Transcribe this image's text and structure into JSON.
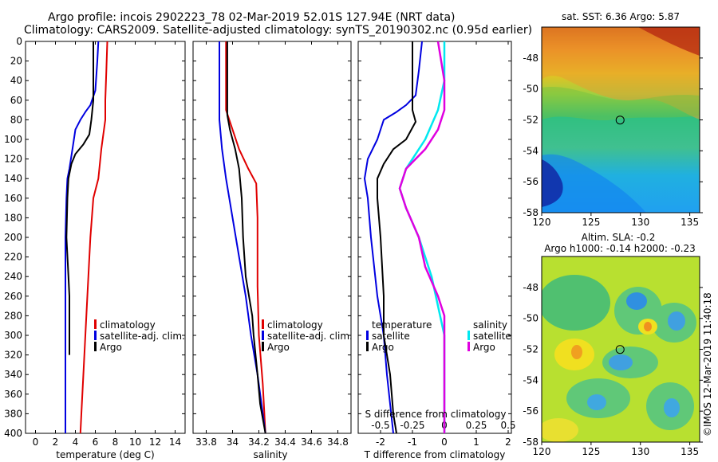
{
  "title": {
    "line1": "Argo profile: incois 2902223_78 02-Mar-2019 52.01S 127.94E (NRT data)",
    "line2": "Climatology: CARS2009. Satellite-adjusted climatology: synTS_20190302.nc (0.95d earlier)"
  },
  "depth_axis": {
    "ylim": [
      0,
      400
    ],
    "ticks": [
      0,
      20,
      40,
      60,
      80,
      100,
      120,
      140,
      160,
      180,
      200,
      220,
      240,
      260,
      280,
      300,
      320,
      340,
      360,
      380,
      400
    ]
  },
  "colors": {
    "climatology": "#e00000",
    "satellite": "#0000e0",
    "argo": "#000000",
    "cyan": "#00e8f0",
    "magenta": "#e000e0"
  },
  "chart_data": [
    {
      "type": "line",
      "panel": "temperature",
      "xlabel": "temperature (deg C)",
      "xlim": [
        -1,
        15
      ],
      "xticks": [
        0,
        2,
        4,
        6,
        8,
        10,
        12,
        14
      ],
      "legend": [
        "climatology",
        "satellite-adj. clim.",
        "Argo"
      ],
      "series": [
        {
          "name": "climatology",
          "color": "#e00000",
          "points": [
            [
              7.2,
              0
            ],
            [
              7.1,
              30
            ],
            [
              7.0,
              60
            ],
            [
              7.0,
              80
            ],
            [
              6.8,
              95
            ],
            [
              6.6,
              110
            ],
            [
              6.3,
              140
            ],
            [
              5.8,
              160
            ],
            [
              5.5,
              200
            ],
            [
              5.2,
              260
            ],
            [
              5.0,
              300
            ],
            [
              4.8,
              340
            ],
            [
              4.6,
              380
            ],
            [
              4.5,
              400
            ]
          ]
        },
        {
          "name": "satellite-adj. clim.",
          "color": "#0000e0",
          "points": [
            [
              6.3,
              0
            ],
            [
              6.2,
              20
            ],
            [
              6.0,
              50
            ],
            [
              5.5,
              65
            ],
            [
              5.0,
              72
            ],
            [
              4.5,
              80
            ],
            [
              4.0,
              90
            ],
            [
              3.7,
              110
            ],
            [
              3.4,
              130
            ],
            [
              3.2,
              140
            ],
            [
              3.1,
              160
            ],
            [
              3.0,
              200
            ],
            [
              3.0,
              260
            ],
            [
              3.0,
              300
            ],
            [
              3.0,
              340
            ],
            [
              3.0,
              400
            ]
          ]
        },
        {
          "name": "Argo",
          "color": "#000000",
          "points": [
            [
              5.8,
              0
            ],
            [
              5.8,
              20
            ],
            [
              5.8,
              40
            ],
            [
              5.8,
              60
            ],
            [
              5.6,
              80
            ],
            [
              5.4,
              95
            ],
            [
              4.8,
              105
            ],
            [
              4.0,
              115
            ],
            [
              3.6,
              125
            ],
            [
              3.3,
              140
            ],
            [
              3.2,
              160
            ],
            [
              3.1,
              200
            ],
            [
              3.3,
              240
            ],
            [
              3.4,
              260
            ],
            [
              3.4,
              300
            ],
            [
              3.4,
              320
            ]
          ]
        }
      ]
    },
    {
      "type": "line",
      "panel": "salinity",
      "xlabel": "salinity",
      "xlim": [
        33.7,
        34.9
      ],
      "xticks": [
        33.8,
        34,
        34.2,
        34.4,
        34.6,
        34.8
      ],
      "tick_labels": [
        "33.8",
        "34",
        "34.2",
        "34.4",
        "34.6",
        "34.8"
      ],
      "legend": [
        "climatology",
        "satellite-adj. clim.",
        "Argo"
      ],
      "series": [
        {
          "name": "climatology",
          "color": "#e00000",
          "points": [
            [
              33.95,
              0
            ],
            [
              33.95,
              50
            ],
            [
              33.95,
              70
            ],
            [
              34.0,
              90
            ],
            [
              34.05,
              110
            ],
            [
              34.12,
              130
            ],
            [
              34.18,
              145
            ],
            [
              34.19,
              180
            ],
            [
              34.19,
              250
            ],
            [
              34.2,
              300
            ],
            [
              34.23,
              350
            ],
            [
              34.25,
              400
            ]
          ]
        },
        {
          "name": "satellite-adj. clim.",
          "color": "#0000e0",
          "points": [
            [
              33.9,
              0
            ],
            [
              33.9,
              40
            ],
            [
              33.9,
              80
            ],
            [
              33.92,
              110
            ],
            [
              33.95,
              140
            ],
            [
              34.0,
              180
            ],
            [
              34.05,
              220
            ],
            [
              34.1,
              260
            ],
            [
              34.14,
              300
            ],
            [
              34.19,
              340
            ],
            [
              34.22,
              370
            ],
            [
              34.25,
              400
            ]
          ]
        },
        {
          "name": "Argo",
          "color": "#000000",
          "points": [
            [
              33.96,
              0
            ],
            [
              33.96,
              30
            ],
            [
              33.96,
              60
            ],
            [
              33.96,
              75
            ],
            [
              33.98,
              90
            ],
            [
              34.02,
              110
            ],
            [
              34.05,
              130
            ],
            [
              34.07,
              160
            ],
            [
              34.08,
              200
            ],
            [
              34.1,
              240
            ],
            [
              34.15,
              280
            ],
            [
              34.16,
              300
            ],
            [
              34.19,
              340
            ],
            [
              34.21,
              370
            ],
            [
              34.25,
              400
            ]
          ]
        }
      ]
    },
    {
      "type": "line",
      "panel": "difference",
      "xlabel": "T difference from climatology",
      "xlim": [
        -2.7,
        2.1
      ],
      "xticks": [
        -2,
        -1,
        0,
        1,
        2
      ],
      "top_axis_label": "S difference from climatology",
      "top_ticks": [
        -0.5,
        -0.25,
        0,
        0.25,
        0.5
      ],
      "top_tick_labels": [
        "-0.5",
        "-0.25",
        "0",
        "0.25",
        "0.5"
      ],
      "legend_left": {
        "title": "temperature",
        "items": [
          "satellite",
          "Argo"
        ]
      },
      "legend_right": {
        "title": "salinity",
        "items": [
          "satellite",
          "Argo"
        ]
      },
      "series": [
        {
          "name": "temperature satellite",
          "color": "#0000e0",
          "points": [
            [
              -0.7,
              0
            ],
            [
              -0.8,
              30
            ],
            [
              -0.9,
              55
            ],
            [
              -1.2,
              65
            ],
            [
              -1.5,
              72
            ],
            [
              -1.9,
              80
            ],
            [
              -2.1,
              100
            ],
            [
              -2.4,
              120
            ],
            [
              -2.5,
              140
            ],
            [
              -2.4,
              160
            ],
            [
              -2.3,
              200
            ],
            [
              -2.1,
              260
            ],
            [
              -1.9,
              300
            ],
            [
              -1.8,
              340
            ],
            [
              -1.6,
              400
            ]
          ]
        },
        {
          "name": "temperature Argo",
          "color": "#000000",
          "points": [
            [
              -1.0,
              0
            ],
            [
              -1.0,
              30
            ],
            [
              -1.0,
              60
            ],
            [
              -1.0,
              70
            ],
            [
              -0.9,
              82
            ],
            [
              -1.2,
              100
            ],
            [
              -1.6,
              110
            ],
            [
              -1.9,
              125
            ],
            [
              -2.1,
              140
            ],
            [
              -2.1,
              160
            ],
            [
              -2.0,
              200
            ],
            [
              -1.9,
              260
            ],
            [
              -1.9,
              300
            ],
            [
              -1.7,
              340
            ],
            [
              -1.6,
              380
            ],
            [
              -1.5,
              400
            ]
          ]
        },
        {
          "name": "salinity satellite",
          "color": "#00e8f0",
          "points": [
            [
              0.0,
              0
            ],
            [
              0.0,
              40
            ],
            [
              -0.05,
              70
            ],
            [
              -0.15,
              100
            ],
            [
              -0.3,
              130
            ],
            [
              -0.35,
              150
            ],
            [
              -0.3,
              170
            ],
            [
              -0.2,
              200
            ],
            [
              -0.1,
              240
            ],
            [
              -0.05,
              270
            ],
            [
              0.0,
              300
            ],
            [
              0.0,
              400
            ]
          ]
        },
        {
          "name": "salinity Argo",
          "color": "#e000e0",
          "points": [
            [
              -0.05,
              0
            ],
            [
              0.0,
              40
            ],
            [
              0.0,
              70
            ],
            [
              -0.05,
              90
            ],
            [
              -0.15,
              110
            ],
            [
              -0.3,
              130
            ],
            [
              -0.35,
              150
            ],
            [
              -0.3,
              170
            ],
            [
              -0.2,
              200
            ],
            [
              -0.15,
              230
            ],
            [
              -0.05,
              260
            ],
            [
              0.0,
              280
            ],
            [
              0.0,
              300
            ],
            [
              0.0,
              330
            ],
            [
              0.0,
              400
            ]
          ]
        }
      ]
    },
    {
      "type": "heatmap",
      "panel": "sst_map",
      "title": "sat. SST: 6.36 Argo: 5.87",
      "xlim": [
        120,
        136
      ],
      "ylim": [
        -58,
        -46
      ],
      "xticks": [
        120,
        125,
        130,
        135
      ],
      "yticks": [
        -48,
        -50,
        -52,
        -54,
        -56,
        -58
      ],
      "marker": {
        "lon": 127.94,
        "lat": -52.01
      }
    },
    {
      "type": "heatmap",
      "panel": "sla_map",
      "title": "Altim. SLA: -0.2",
      "subtitle": "Argo h1000: -0.14 h2000: -0.23",
      "xlim": [
        120,
        136
      ],
      "ylim": [
        -58,
        -46
      ],
      "xticks": [
        120,
        125,
        130,
        135
      ],
      "yticks": [
        -48,
        -50,
        -52,
        -54,
        -56,
        -58
      ],
      "marker": {
        "lon": 127.94,
        "lat": -52.01
      }
    }
  ],
  "stamp": "©IMOS 12-Mar-2019 11:40:18"
}
